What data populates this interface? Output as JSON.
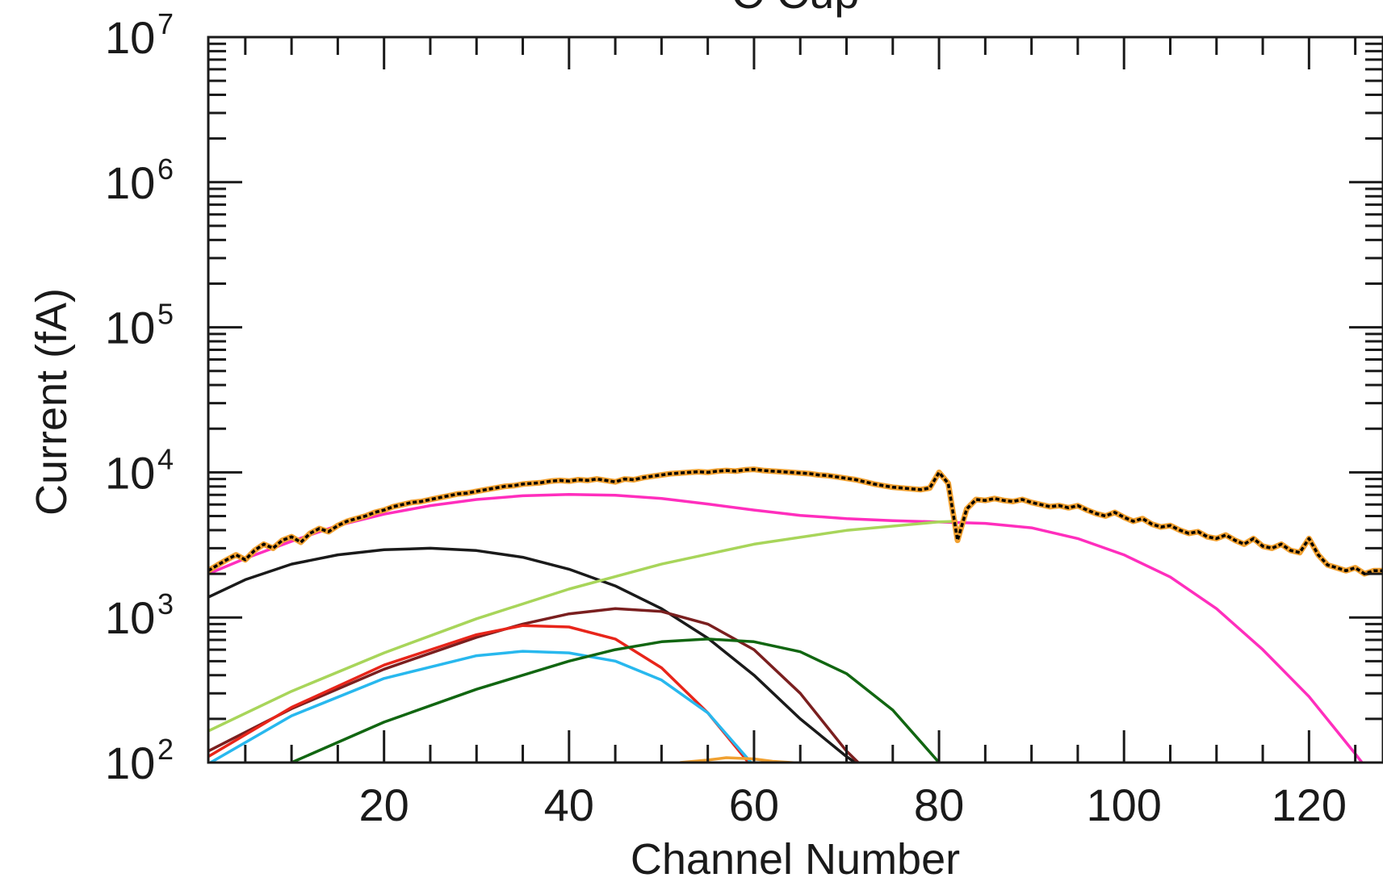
{
  "chart_data": {
    "type": "line",
    "title": "C Cup",
    "xlabel": "Channel Number",
    "ylabel": "Current (fA)",
    "xscale": "linear",
    "yscale": "log",
    "xlim": [
      1,
      128
    ],
    "ylim": [
      100,
      10000000
    ],
    "grid": false,
    "legend": "none",
    "x_ticks": [
      20,
      40,
      60,
      80,
      100,
      120
    ],
    "x_tick_labels": [
      "20",
      "40",
      "60",
      "80",
      "100",
      "120"
    ],
    "y_ticks": [
      100,
      1000,
      10000,
      100000,
      1000000,
      10000000
    ],
    "y_tick_labels": [
      {
        "base": "10",
        "exp": "2"
      },
      {
        "base": "10",
        "exp": "3"
      },
      {
        "base": "10",
        "exp": "4"
      },
      {
        "base": "10",
        "exp": "5"
      },
      {
        "base": "10",
        "exp": "6"
      },
      {
        "base": "10",
        "exp": "7"
      }
    ],
    "series": [
      {
        "color": "#000000",
        "role": "measured",
        "x": [
          1,
          2,
          3,
          4,
          5,
          6,
          7,
          8,
          9,
          10,
          11,
          12,
          13,
          14,
          15,
          16,
          17,
          18,
          19,
          20,
          21,
          22,
          23,
          24,
          25,
          26,
          27,
          28,
          29,
          30,
          31,
          32,
          33,
          34,
          35,
          36,
          37,
          38,
          39,
          40,
          41,
          42,
          43,
          44,
          45,
          46,
          47,
          48,
          49,
          50,
          51,
          52,
          53,
          54,
          55,
          56,
          57,
          58,
          59,
          60,
          61,
          62,
          63,
          64,
          65,
          66,
          67,
          68,
          69,
          70,
          71,
          72,
          73,
          74,
          75,
          76,
          77,
          78,
          79,
          80,
          81,
          82,
          83,
          84,
          85,
          86,
          87,
          88,
          89,
          90,
          91,
          92,
          93,
          94,
          95,
          96,
          97,
          98,
          99,
          100,
          101,
          102,
          103,
          104,
          105,
          106,
          107,
          108,
          109,
          110,
          111,
          112,
          113,
          114,
          115,
          116,
          117,
          118,
          119,
          120,
          121,
          122,
          123,
          124,
          125,
          126,
          127,
          128
        ],
        "y": [
          2100,
          2300,
          2500,
          2700,
          2500,
          2900,
          3200,
          3000,
          3400,
          3600,
          3300,
          3800,
          4100,
          3900,
          4300,
          4600,
          4800,
          5000,
          5300,
          5500,
          5800,
          6000,
          6200,
          6300,
          6500,
          6700,
          6900,
          7100,
          7200,
          7400,
          7600,
          7800,
          8000,
          8100,
          8300,
          8400,
          8500,
          8700,
          8800,
          8700,
          8900,
          8800,
          9000,
          8800,
          8600,
          9000,
          8900,
          9200,
          9400,
          9600,
          9800,
          9900,
          10000,
          10100,
          10000,
          10200,
          10300,
          10200,
          10400,
          10500,
          10300,
          10200,
          10100,
          10000,
          9900,
          9800,
          9600,
          9500,
          9300,
          9100,
          8900,
          8600,
          8300,
          8100,
          7900,
          7800,
          7700,
          7600,
          7800,
          10000,
          8400,
          3400,
          5600,
          6500,
          6400,
          6600,
          6400,
          6300,
          6500,
          6200,
          6000,
          5800,
          5900,
          5700,
          5900,
          5500,
          5200,
          5000,
          5300,
          4900,
          4600,
          4800,
          4400,
          4200,
          4300,
          4000,
          3800,
          3900,
          3600,
          3500,
          3700,
          3400,
          3200,
          3500,
          3100,
          3000,
          3200,
          2900,
          2800,
          3500,
          2700,
          2300,
          2200,
          2100,
          2200,
          2000,
          2100,
          2100
        ]
      },
      {
        "color": "#ff2ebd",
        "role": "total-fit",
        "x": [
          1,
          5,
          10,
          15,
          20,
          25,
          30,
          35,
          40,
          45,
          50,
          55,
          60,
          65,
          70,
          75,
          80,
          85,
          90,
          95,
          100,
          105,
          110,
          115,
          120,
          125,
          128
        ],
        "y": [
          2000,
          2550,
          3350,
          4300,
          5150,
          5900,
          6500,
          6900,
          7050,
          6950,
          6600,
          6050,
          5500,
          5050,
          4800,
          4650,
          4550,
          4450,
          4150,
          3500,
          2700,
          1900,
          1150,
          600,
          285,
          115,
          65
        ]
      },
      {
        "color": "#1a1a1a",
        "role": "fit-component",
        "x": [
          1,
          5,
          10,
          15,
          20,
          25,
          30,
          35,
          40,
          45,
          50,
          55,
          60,
          65,
          70,
          72
        ],
        "y": [
          1380,
          1820,
          2330,
          2700,
          2930,
          3000,
          2890,
          2600,
          2150,
          1650,
          1150,
          720,
          400,
          200,
          110,
          90
        ]
      },
      {
        "color": "#a8d55a",
        "role": "fit-component",
        "x": [
          1,
          10,
          20,
          30,
          40,
          50,
          60,
          70,
          80,
          82
        ],
        "y": [
          165,
          310,
          570,
          980,
          1570,
          2330,
          3200,
          3980,
          4560,
          4600
        ]
      },
      {
        "color": "#7a1f1f",
        "role": "fit-component",
        "x": [
          1,
          10,
          20,
          30,
          35,
          40,
          45,
          50,
          55,
          60,
          65,
          70,
          72
        ],
        "y": [
          120,
          235,
          440,
          730,
          900,
          1060,
          1150,
          1100,
          900,
          600,
          300,
          120,
          90
        ]
      },
      {
        "color": "#e8251a",
        "role": "fit-component",
        "x": [
          1,
          10,
          20,
          30,
          35,
          40,
          45,
          50,
          55,
          60
        ],
        "y": [
          110,
          240,
          470,
          760,
          880,
          860,
          710,
          450,
          220,
          90
        ]
      },
      {
        "color": "#28b8ee",
        "role": "fit-component",
        "x": [
          1,
          10,
          20,
          30,
          35,
          40,
          45,
          50,
          55,
          60
        ],
        "y": [
          98,
          210,
          380,
          545,
          585,
          570,
          500,
          370,
          220,
          95
        ]
      },
      {
        "color": "#116611",
        "role": "fit-component",
        "x": [
          10,
          20,
          30,
          40,
          45,
          50,
          55,
          60,
          65,
          70,
          75,
          80
        ],
        "y": [
          100,
          190,
          320,
          500,
          600,
          680,
          710,
          680,
          580,
          410,
          230,
          100
        ]
      },
      {
        "color": "#f0a030",
        "role": "fit-component",
        "x": [
          52,
          55,
          57,
          60,
          62,
          65
        ],
        "y": [
          100,
          104,
          108,
          106,
          102,
          99
        ]
      }
    ]
  }
}
